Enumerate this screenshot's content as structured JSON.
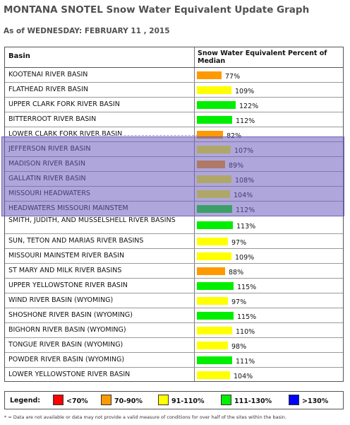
{
  "title": "MONTANA SNOTEL Snow Water Equivalent Update Graph",
  "as_of": "As of WEDNESDAY: FEBRUARY 11 , 2015",
  "table": {
    "col_basin": "Basin",
    "col_swe": "Snow Water Equivalent Percent of Median"
  },
  "colors": {
    "lt70": "#ff0000",
    "70_90": "#ff9900",
    "91_110": "#ffff00",
    "111_130": "#00ee00",
    "gt130": "#0000ff",
    "highlight": "#6f63b8"
  },
  "chart_data": {
    "type": "bar",
    "orientation": "horizontal",
    "categories": [
      "KOOTENAI RIVER BASIN",
      "FLATHEAD RIVER BASIN",
      "UPPER CLARK FORK RIVER BASIN",
      "BITTERROOT RIVER BASIN",
      "LOWER CLARK FORK RIVER BASIN",
      "JEFFERSON RIVER BASIN",
      "MADISON RIVER BASIN",
      "GALLATIN RIVER BASIN",
      "MISSOURI HEADWATERS",
      "HEADWATERS MISSOURI MAINSTEM",
      "SMITH, JUDITH, AND MUSSELSHELL RIVER BASINS",
      "SUN, TETON AND MARIAS RIVER BASINS",
      "MISSOURI MAINSTEM RIVER BASIN",
      "ST MARY AND MILK RIVER BASINS",
      "UPPER YELLOWSTONE RIVER BASIN",
      "WIND RIVER BASIN (WYOMING)",
      "SHOSHONE RIVER BASIN (WYOMING)",
      "BIGHORN RIVER BASIN (WYOMING)",
      "TONGUE RIVER BASIN (WYOMING)",
      "POWDER RIVER BASIN (WYOMING)",
      "LOWER YELLOWSTONE RIVER BASIN"
    ],
    "values": [
      77,
      109,
      122,
      112,
      82,
      107,
      89,
      108,
      104,
      112,
      113,
      97,
      109,
      88,
      115,
      97,
      115,
      110,
      98,
      111,
      104
    ],
    "value_labels": [
      "77%",
      "109%",
      "122%",
      "112%",
      "82%",
      "107%",
      "89%",
      "108%",
      "104%",
      "112%",
      "113%",
      "97%",
      "109%",
      "88%",
      "115%",
      "97%",
      "115%",
      "110%",
      "98%",
      "111%",
      "104%"
    ],
    "highlighted_rows": [
      5,
      6,
      7,
      8,
      9
    ],
    "legend_title": "Legend:",
    "legend": [
      {
        "label": "<70%",
        "color": "#ff0000"
      },
      {
        "label": "70-90%",
        "color": "#ff9900"
      },
      {
        "label": "91-110%",
        "color": "#ffff00"
      },
      {
        "label": "111-130%",
        "color": "#00ee00"
      },
      {
        "label": ">130%",
        "color": "#0000ff"
      }
    ]
  },
  "footnote": "* = Data are not available or data may not provide a valid measure of conditions for over half of the sites within the basin."
}
